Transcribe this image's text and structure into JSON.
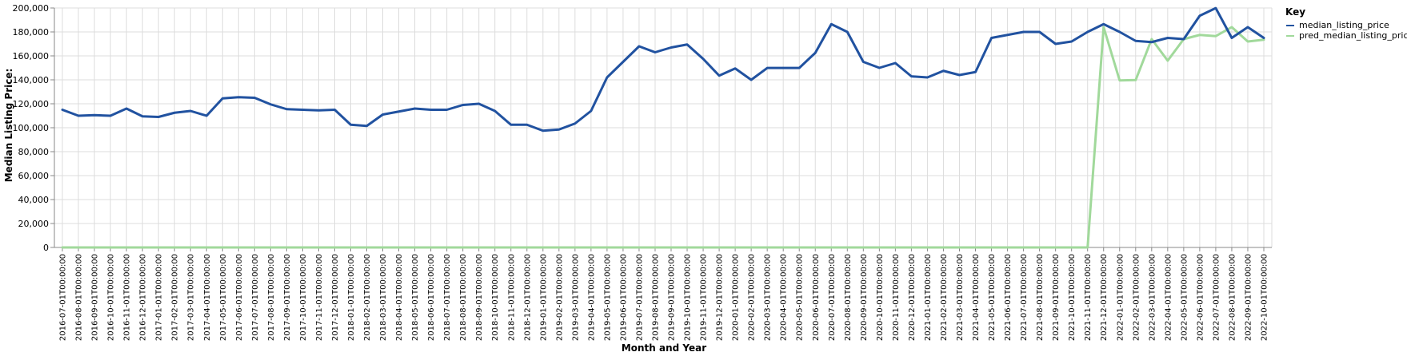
{
  "chart_data": {
    "type": "line",
    "title": "",
    "xlabel": "Month and Year",
    "ylabel": "Median Listing Price:",
    "ylim": [
      0,
      200000
    ],
    "yticks": [
      0,
      20000,
      40000,
      60000,
      80000,
      100000,
      120000,
      140000,
      160000,
      180000,
      200000
    ],
    "ytick_labels": [
      "0",
      "20,000",
      "40,000",
      "60,000",
      "80,000",
      "100,000",
      "120,000",
      "140,000",
      "160,000",
      "180,000",
      "200,000"
    ],
    "grid": true,
    "legend": {
      "title": "Key",
      "placement": "top-right"
    },
    "x": [
      "2016-07-01T00:00:00",
      "2016-08-01T00:00:00",
      "2016-09-01T00:00:00",
      "2016-10-01T00:00:00",
      "2016-11-01T00:00:00",
      "2016-12-01T00:00:00",
      "2017-01-01T00:00:00",
      "2017-02-01T00:00:00",
      "2017-03-01T00:00:00",
      "2017-04-01T00:00:00",
      "2017-05-01T00:00:00",
      "2017-06-01T00:00:00",
      "2017-07-01T00:00:00",
      "2017-08-01T00:00:00",
      "2017-09-01T00:00:00",
      "2017-10-01T00:00:00",
      "2017-11-01T00:00:00",
      "2017-12-01T00:00:00",
      "2018-01-01T00:00:00",
      "2018-02-01T00:00:00",
      "2018-03-01T00:00:00",
      "2018-04-01T00:00:00",
      "2018-05-01T00:00:00",
      "2018-06-01T00:00:00",
      "2018-07-01T00:00:00",
      "2018-08-01T00:00:00",
      "2018-09-01T00:00:00",
      "2018-10-01T00:00:00",
      "2018-11-01T00:00:00",
      "2018-12-01T00:00:00",
      "2019-01-01T00:00:00",
      "2019-02-01T00:00:00",
      "2019-03-01T00:00:00",
      "2019-04-01T00:00:00",
      "2019-05-01T00:00:00",
      "2019-06-01T00:00:00",
      "2019-07-01T00:00:00",
      "2019-08-01T00:00:00",
      "2019-09-01T00:00:00",
      "2019-10-01T00:00:00",
      "2019-11-01T00:00:00",
      "2019-12-01T00:00:00",
      "2020-01-01T00:00:00",
      "2020-02-01T00:00:00",
      "2020-03-01T00:00:00",
      "2020-04-01T00:00:00",
      "2020-05-01T00:00:00",
      "2020-06-01T00:00:00",
      "2020-07-01T00:00:00",
      "2020-08-01T00:00:00",
      "2020-09-01T00:00:00",
      "2020-10-01T00:00:00",
      "2020-11-01T00:00:00",
      "2020-12-01T00:00:00",
      "2021-01-01T00:00:00",
      "2021-02-01T00:00:00",
      "2021-03-01T00:00:00",
      "2021-04-01T00:00:00",
      "2021-05-01T00:00:00",
      "2021-06-01T00:00:00",
      "2021-07-01T00:00:00",
      "2021-08-01T00:00:00",
      "2021-09-01T00:00:00",
      "2021-10-01T00:00:00",
      "2021-11-01T00:00:00",
      "2021-12-01T00:00:00",
      "2022-01-01T00:00:00",
      "2022-02-01T00:00:00",
      "2022-03-01T00:00:00",
      "2022-04-01T00:00:00",
      "2022-05-01T00:00:00",
      "2022-06-01T00:00:00",
      "2022-07-01T00:00:00",
      "2022-08-01T00:00:00",
      "2022-09-01T00:00:00",
      "2022-10-01T00:00:00"
    ],
    "series": [
      {
        "name": "median_listing_price",
        "color": "#2152a0",
        "values": [
          115000,
          110000,
          110500,
          110000,
          116000,
          109500,
          109000,
          112500,
          114000,
          110000,
          124500,
          125500,
          125000,
          119500,
          115500,
          115000,
          114500,
          115000,
          102500,
          101500,
          111000,
          113500,
          116000,
          115000,
          115000,
          119000,
          120000,
          114000,
          102500,
          102500,
          97500,
          98500,
          103500,
          114000,
          142000,
          155000,
          168000,
          163000,
          167000,
          169500,
          157500,
          143500,
          149500,
          140000,
          149900,
          149900,
          149900,
          162500,
          186500,
          180000,
          155000,
          150000,
          154000,
          142900,
          142000,
          147500,
          144000,
          146500,
          175000,
          177500,
          180000,
          180000,
          170000,
          172000,
          180000,
          186500,
          180000,
          172500,
          171500,
          175000,
          174000,
          193500,
          199900,
          175000,
          184000,
          175000
        ]
      },
      {
        "name": "pred_median_listing_price",
        "color": "#a1d99b",
        "values": [
          0,
          0,
          0,
          0,
          0,
          0,
          0,
          0,
          0,
          0,
          0,
          0,
          0,
          0,
          0,
          0,
          0,
          0,
          0,
          0,
          0,
          0,
          0,
          0,
          0,
          0,
          0,
          0,
          0,
          0,
          0,
          0,
          0,
          0,
          0,
          0,
          0,
          0,
          0,
          0,
          0,
          0,
          0,
          0,
          0,
          0,
          0,
          0,
          0,
          0,
          0,
          0,
          0,
          0,
          0,
          0,
          0,
          0,
          0,
          0,
          0,
          0,
          0,
          0,
          0,
          184000,
          139500,
          139800,
          174000,
          156000,
          174000,
          177500,
          176500,
          184000,
          172000,
          173500
        ]
      }
    ]
  }
}
